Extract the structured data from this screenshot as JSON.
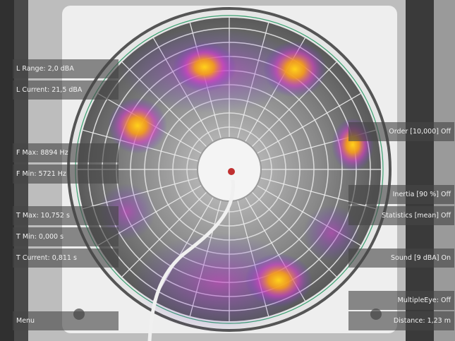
{
  "left_buttons": [
    "L Range: 2,0 dBA",
    "L Current: 21,5 dBA",
    "F Max: 8894 Hz",
    "F Min: 5721 Hz",
    "T Max: 10,752 s",
    "T Min: 0,000 s",
    "T Current: 0,811 s",
    "Menu"
  ],
  "right_buttons": [
    "Order [10,000] Off",
    "Inertia [90 %] Off",
    "Statistics [mean] Off",
    "Sound [9 dBA] On",
    "MultipleEye: Off",
    "Distance: 1,23 m"
  ]
}
